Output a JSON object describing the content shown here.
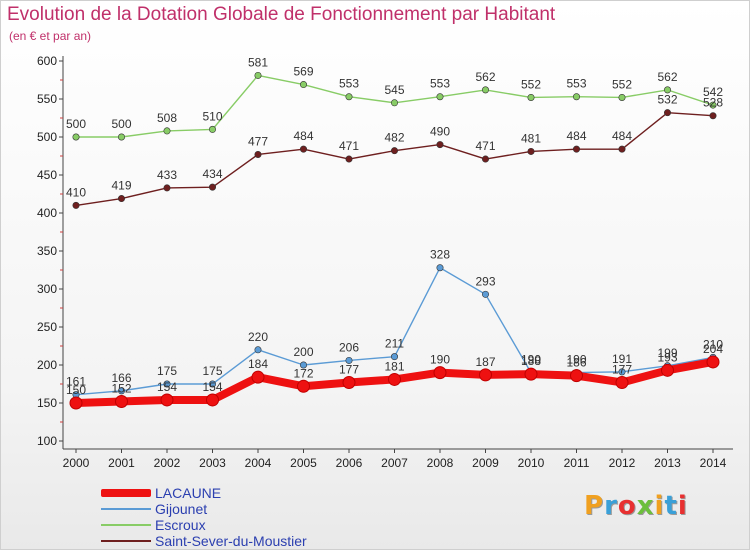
{
  "chart_data": {
    "type": "line",
    "title": "Evolution de la Dotation Globale de Fonctionnement par Habitant",
    "subtitle": "(en € et par an)",
    "xlabel": "",
    "ylabel": "",
    "categories": [
      "2000",
      "2001",
      "2002",
      "2003",
      "2004",
      "2005",
      "2006",
      "2007",
      "2008",
      "2009",
      "2010",
      "2011",
      "2012",
      "2013",
      "2014"
    ],
    "yticks": [
      100,
      150,
      200,
      250,
      300,
      350,
      400,
      450,
      500,
      550,
      600
    ],
    "ylim": [
      100,
      600
    ],
    "grid": false,
    "legend_position": "bottom-left",
    "series": [
      {
        "name": "LACAUNE",
        "color": "#ee1111",
        "values": [
          150,
          152,
          154,
          154,
          184,
          172,
          177,
          181,
          190,
          187,
          188,
          186,
          177,
          193,
          204
        ]
      },
      {
        "name": "Gijounet",
        "color": "#5b9bd5",
        "values": [
          161,
          166,
          175,
          175,
          220,
          200,
          206,
          211,
          328,
          293,
          190,
          190,
          191,
          199,
          210
        ]
      },
      {
        "name": "Escroux",
        "color": "#88cc66",
        "values": [
          500,
          500,
          508,
          510,
          581,
          569,
          553,
          545,
          553,
          562,
          552,
          553,
          552,
          562,
          542
        ]
      },
      {
        "name": "Saint-Sever-du-Moustier",
        "color": "#6e1f1f",
        "values": [
          410,
          419,
          433,
          434,
          477,
          484,
          471,
          482,
          490,
          471,
          481,
          484,
          484,
          532,
          528
        ]
      }
    ]
  },
  "brand": {
    "letters": [
      "P",
      "r",
      "o",
      "x",
      "i",
      "t",
      "i"
    ],
    "colors": [
      "#f0a020",
      "#3aa0d8",
      "#e83030",
      "#6cbf3c",
      "#f0a020",
      "#3aa0d8",
      "#e83030"
    ]
  }
}
